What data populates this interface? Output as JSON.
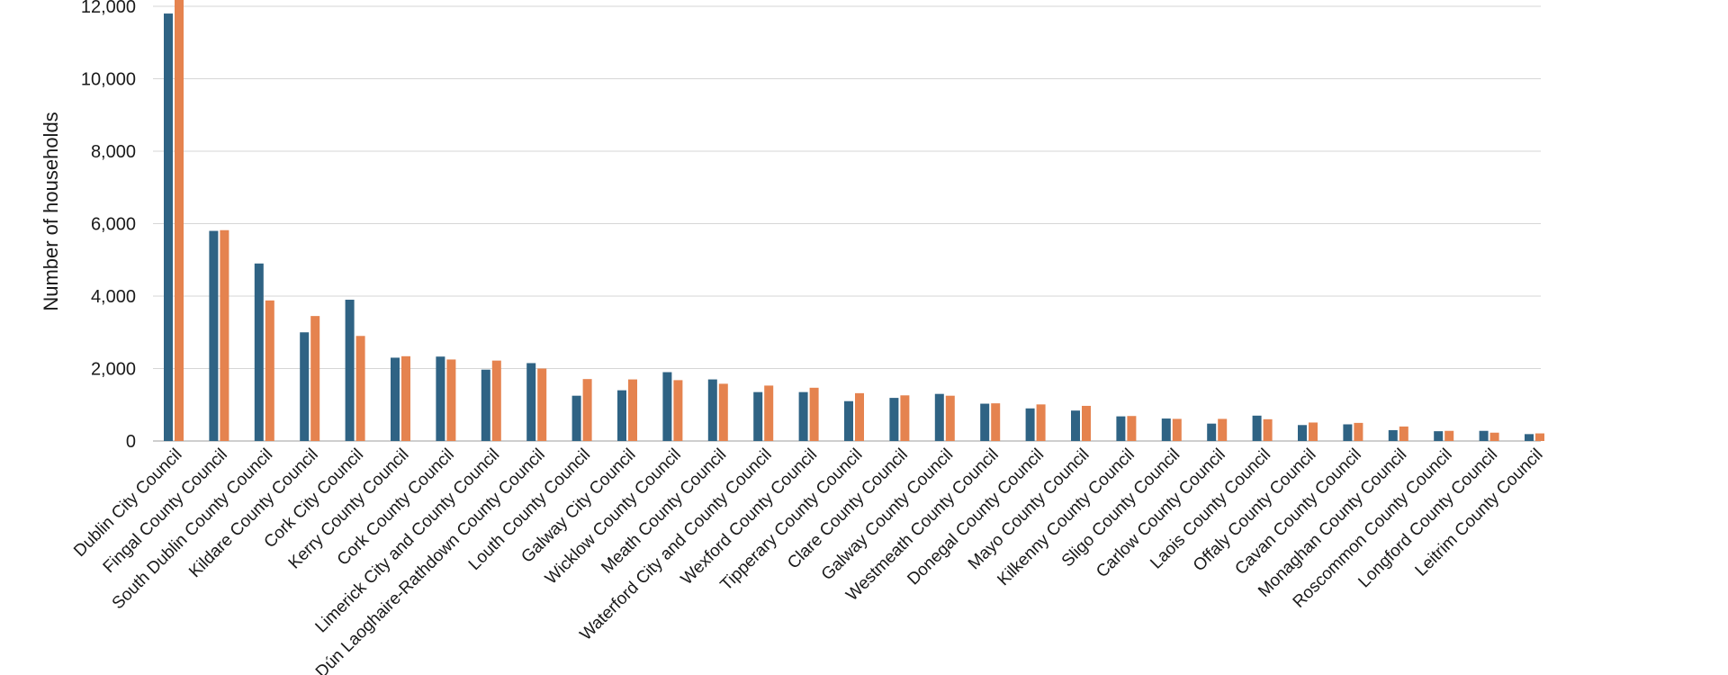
{
  "chart_data": {
    "type": "bar",
    "ylabel": "Number of households",
    "xlabel": "",
    "ylim": [
      0,
      12000
    ],
    "yticks": [
      "0",
      "2,000",
      "4,000",
      "6,000",
      "8,000",
      "10,000",
      "12,000"
    ],
    "ytick_values": [
      0,
      2000,
      4000,
      6000,
      8000,
      10000,
      12000
    ],
    "grid": true,
    "categories": [
      "Dublin City Council",
      "Fingal County Council",
      "South Dublin County Council",
      "Kildare County Council",
      "Cork City Council",
      "Kerry County Council",
      "Cork County Council",
      "Limerick City and County Council",
      "Dún Laoghaire-Rathdown County Council",
      "Louth County Council",
      "Galway City Council",
      "Wicklow County Council",
      "Meath County Council",
      "Waterford City and County Council",
      "Wexford County Council",
      "Tipperary County Council",
      "Clare County Council",
      "Galway County Council",
      "Westmeath County Council",
      "Donegal County Council",
      "Mayo County Council",
      "Kilkenny County Council",
      "Sligo County Council",
      "Carlow County Council",
      "Laois County Council",
      "Offaly County Council",
      "Cavan County Council",
      "Monaghan County Council",
      "Roscommon County Council",
      "Longford County Council",
      "Leitrim County Council"
    ],
    "series": [
      {
        "color": "#2f6384",
        "values": [
          11800,
          5800,
          4900,
          3000,
          3900,
          2300,
          2330,
          1970,
          2150,
          1250,
          1400,
          1900,
          1700,
          1350,
          1350,
          1100,
          1190,
          1300,
          1030,
          900,
          840,
          680,
          620,
          480,
          700,
          440,
          460,
          300,
          270,
          280,
          190
        ]
      },
      {
        "color": "#e5834f",
        "values": [
          12400,
          5820,
          3880,
          3450,
          2900,
          2340,
          2250,
          2220,
          2000,
          1710,
          1700,
          1680,
          1580,
          1530,
          1470,
          1320,
          1260,
          1250,
          1040,
          1010,
          970,
          690,
          610,
          610,
          600,
          510,
          500,
          400,
          280,
          230,
          210
        ]
      }
    ]
  }
}
